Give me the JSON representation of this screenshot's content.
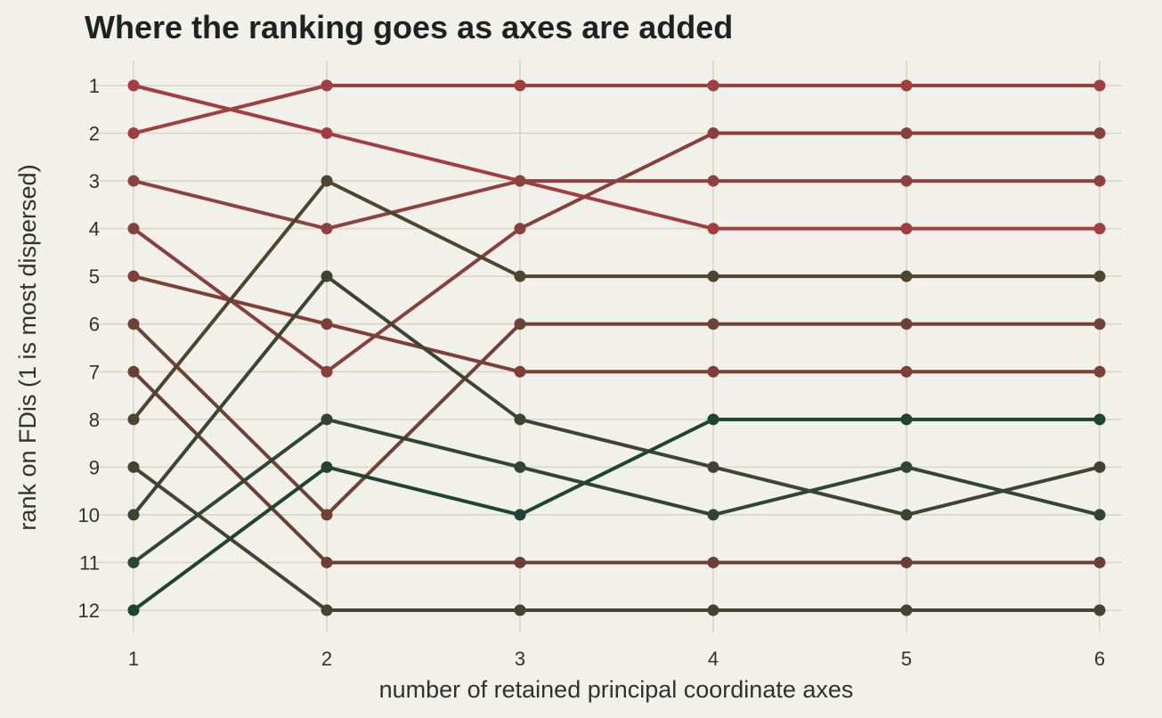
{
  "chart_data": {
    "type": "line",
    "title": "Where the ranking goes as axes are added",
    "xlabel": "number of retained principal coordinate axes",
    "ylabel": "rank on FDis (1 is most dispersed)",
    "x": [
      1,
      2,
      3,
      4,
      5,
      6
    ],
    "xlim": [
      1,
      6
    ],
    "ylim": [
      1,
      12
    ],
    "y_reversed": true,
    "y_ticks": [
      1,
      2,
      3,
      4,
      5,
      6,
      7,
      8,
      9,
      10,
      11,
      12
    ],
    "grid": true,
    "legend": "none",
    "series": [
      {
        "values": [
          1,
          2,
          3,
          4,
          4,
          4
        ],
        "color": "#a23e40"
      },
      {
        "values": [
          2,
          1,
          1,
          1,
          1,
          1
        ],
        "color": "#9e3f40"
      },
      {
        "values": [
          3,
          4,
          3,
          3,
          3,
          3
        ],
        "color": "#8e4240"
      },
      {
        "values": [
          4,
          7,
          4,
          2,
          2,
          2
        ],
        "color": "#88403c"
      },
      {
        "values": [
          5,
          6,
          7,
          7,
          7,
          7
        ],
        "color": "#7d4037"
      },
      {
        "values": [
          6,
          10,
          6,
          6,
          6,
          6
        ],
        "color": "#6f4236"
      },
      {
        "values": [
          7,
          11,
          11,
          11,
          11,
          11
        ],
        "color": "#6a4034"
      },
      {
        "values": [
          8,
          3,
          5,
          5,
          5,
          5
        ],
        "color": "#4f4430"
      },
      {
        "values": [
          9,
          12,
          12,
          12,
          12,
          12
        ],
        "color": "#454433"
      },
      {
        "values": [
          10,
          5,
          8,
          9,
          10,
          9
        ],
        "color": "#3c4433"
      },
      {
        "values": [
          11,
          8,
          9,
          10,
          9,
          10
        ],
        "color": "#304535"
      },
      {
        "values": [
          12,
          9,
          10,
          8,
          8,
          8
        ],
        "color": "#1f4434"
      }
    ]
  }
}
